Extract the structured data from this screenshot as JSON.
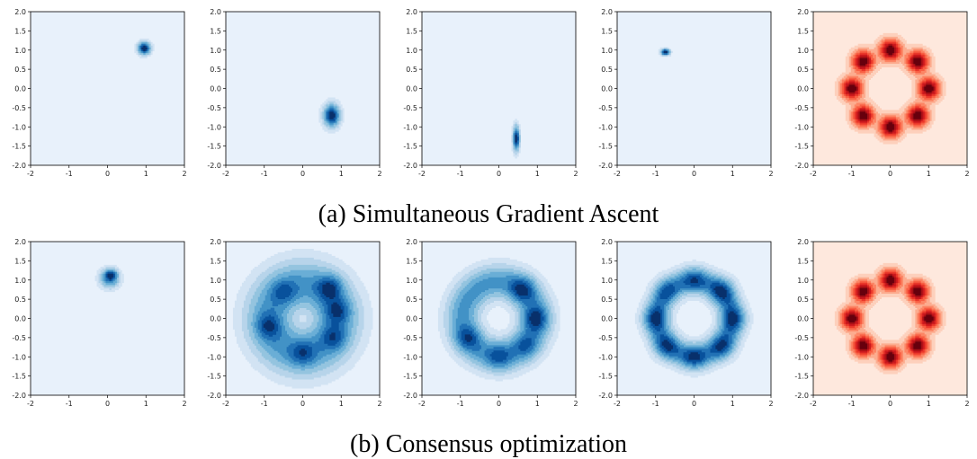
{
  "captions": {
    "row_a": "(a) Simultaneous Gradient Ascent",
    "row_b": "(b) Consensus optimization"
  },
  "colors": {
    "blue_levels": [
      "#e8f1fb",
      "#d2e3f3",
      "#b7d4ea",
      "#94c4df",
      "#6aaed6",
      "#4292c6",
      "#2171b5",
      "#08519c",
      "#08306b"
    ],
    "red_levels": [
      "#fee8dd",
      "#fdd0bc",
      "#fcac8f",
      "#fc8565",
      "#f85f43",
      "#ea372a",
      "#cb181d",
      "#a50f15",
      "#67000d"
    ]
  },
  "chart_data": [
    {
      "type": "contour",
      "row": "a",
      "panel": 1,
      "colormap": "Blues",
      "xlim": [
        -2,
        2
      ],
      "ylim": [
        -2,
        2
      ],
      "xticks": [
        "-2",
        "-1",
        "0",
        "1",
        "2"
      ],
      "yticks": [
        "2.0",
        "1.5",
        "1.0",
        "0.5",
        "0.0",
        "-0.5",
        "-1.0",
        "-1.5",
        "-2.0"
      ],
      "modes": [
        {
          "x": 0.95,
          "y": 1.05,
          "sx": 0.1,
          "sy": 0.1,
          "w": 1
        }
      ]
    },
    {
      "type": "contour",
      "row": "a",
      "panel": 2,
      "colormap": "Blues",
      "xlim": [
        -2,
        2
      ],
      "ylim": [
        -2,
        2
      ],
      "xticks": [
        "-2",
        "-1",
        "0",
        "1",
        "2"
      ],
      "yticks": [
        "2.0",
        "1.5",
        "1.0",
        "0.5",
        "0.0",
        "-0.5",
        "-1.0",
        "-1.5",
        "-2.0"
      ],
      "modes": [
        {
          "x": 0.75,
          "y": -0.7,
          "sx": 0.13,
          "sy": 0.18,
          "w": 1
        }
      ]
    },
    {
      "type": "contour",
      "row": "a",
      "panel": 3,
      "colormap": "Blues",
      "xlim": [
        -2,
        2
      ],
      "ylim": [
        -2,
        2
      ],
      "xticks": [
        "-2",
        "-1",
        "0",
        "1",
        "2"
      ],
      "yticks": [
        "2.0",
        "1.5",
        "1.0",
        "0.5",
        "0.0",
        "-0.5",
        "-1.0",
        "-1.5",
        "-2.0"
      ],
      "modes": [
        {
          "x": 0.45,
          "y": -1.3,
          "sx": 0.05,
          "sy": 0.2,
          "w": 1
        }
      ]
    },
    {
      "type": "contour",
      "row": "a",
      "panel": 4,
      "colormap": "Blues",
      "xlim": [
        -2,
        2
      ],
      "ylim": [
        -2,
        2
      ],
      "xticks": [
        "-2",
        "-1",
        "0",
        "1",
        "2"
      ],
      "yticks": [
        "2.0",
        "1.5",
        "1.0",
        "0.5",
        "0.0",
        "-0.5",
        "-1.0",
        "-1.5",
        "-2.0"
      ],
      "modes": [
        {
          "x": -0.75,
          "y": 0.95,
          "sx": 0.07,
          "sy": 0.05,
          "w": 1
        }
      ]
    },
    {
      "type": "contour",
      "row": "a",
      "panel": 5,
      "colormap": "Reds",
      "xlim": [
        -2,
        2
      ],
      "ylim": [
        -2,
        2
      ],
      "xticks": [
        "-2",
        "-1",
        "0",
        "1",
        "2"
      ],
      "yticks": [
        "2.0",
        "1.5",
        "1.0",
        "0.5",
        "0.0",
        "-0.5",
        "-1.0",
        "-1.5",
        "-2.0"
      ],
      "modes": [
        {
          "x": 0.0,
          "y": 1.0,
          "sx": 0.18,
          "sy": 0.18,
          "w": 1
        },
        {
          "x": 0.707,
          "y": 0.707,
          "sx": 0.18,
          "sy": 0.18,
          "w": 1
        },
        {
          "x": 1.0,
          "y": 0.0,
          "sx": 0.18,
          "sy": 0.18,
          "w": 1
        },
        {
          "x": 0.707,
          "y": -0.707,
          "sx": 0.18,
          "sy": 0.18,
          "w": 1
        },
        {
          "x": 0.0,
          "y": -1.0,
          "sx": 0.18,
          "sy": 0.18,
          "w": 1
        },
        {
          "x": -0.707,
          "y": -0.707,
          "sx": 0.18,
          "sy": 0.18,
          "w": 1
        },
        {
          "x": -1.0,
          "y": 0.0,
          "sx": 0.18,
          "sy": 0.18,
          "w": 1
        },
        {
          "x": -0.707,
          "y": 0.707,
          "sx": 0.18,
          "sy": 0.18,
          "w": 1
        }
      ]
    },
    {
      "type": "contour",
      "row": "b",
      "panel": 1,
      "colormap": "Blues",
      "xlim": [
        -2,
        2
      ],
      "ylim": [
        -2,
        2
      ],
      "xticks": [
        "-2",
        "-1",
        "0",
        "1",
        "2"
      ],
      "yticks": [
        "2.0",
        "1.5",
        "1.0",
        "0.5",
        "0.0",
        "-0.5",
        "-1.0",
        "-1.5",
        "-2.0"
      ],
      "modes": [
        {
          "x": 0.05,
          "y": 1.05,
          "sx": 0.15,
          "sy": 0.15,
          "w": 1
        },
        {
          "x": 0.1,
          "y": 1.15,
          "sx": 0.1,
          "sy": 0.08,
          "w": 0.6
        }
      ]
    },
    {
      "type": "contour",
      "row": "b",
      "panel": 2,
      "colormap": "Blues",
      "xlim": [
        -2,
        2
      ],
      "ylim": [
        -2,
        2
      ],
      "xticks": [
        "-2",
        "-1",
        "0",
        "1",
        "2"
      ],
      "yticks": [
        "2.0",
        "1.5",
        "1.0",
        "0.5",
        "0.0",
        "-0.5",
        "-1.0",
        "-1.5",
        "-2.0"
      ],
      "ring": {
        "r": 0.85,
        "width": 0.42,
        "peaks": [
          {
            "x": 0.7,
            "y": 0.8,
            "w": 1.0
          },
          {
            "x": 0.9,
            "y": 0.2,
            "w": 0.8
          },
          {
            "x": 0.8,
            "y": -0.5,
            "w": 0.7
          },
          {
            "x": -0.9,
            "y": -0.2,
            "w": 0.8
          },
          {
            "x": 0.0,
            "y": -0.9,
            "w": 0.7
          },
          {
            "x": -0.5,
            "y": 0.7,
            "w": 0.6
          }
        ]
      }
    },
    {
      "type": "contour",
      "row": "b",
      "panel": 3,
      "colormap": "Blues",
      "xlim": [
        -2,
        2
      ],
      "ylim": [
        -2,
        2
      ],
      "xticks": [
        "-2",
        "-1",
        "0",
        "1",
        "2"
      ],
      "yticks": [
        "2.0",
        "1.5",
        "1.0",
        "0.5",
        "0.0",
        "-0.5",
        "-1.0",
        "-1.5",
        "-2.0"
      ],
      "ring": {
        "r": 0.95,
        "width": 0.28,
        "peaks": [
          {
            "x": 0.6,
            "y": 0.75,
            "w": 1.0
          },
          {
            "x": 0.95,
            "y": 0.0,
            "w": 1.0
          },
          {
            "x": -0.8,
            "y": -0.5,
            "w": 0.8
          },
          {
            "x": 0.0,
            "y": -1.0,
            "w": 0.7
          },
          {
            "x": 0.7,
            "y": -0.7,
            "w": 0.6
          }
        ]
      }
    },
    {
      "type": "contour",
      "row": "b",
      "panel": 4,
      "colormap": "Blues",
      "xlim": [
        -2,
        2
      ],
      "ylim": [
        -2,
        2
      ],
      "xticks": [
        "-2",
        "-1",
        "0",
        "1",
        "2"
      ],
      "yticks": [
        "2.0",
        "1.5",
        "1.0",
        "0.5",
        "0.0",
        "-0.5",
        "-1.0",
        "-1.5",
        "-2.0"
      ],
      "ring": {
        "r": 0.98,
        "width": 0.2,
        "peaks": [
          {
            "x": 0.0,
            "y": 1.0,
            "w": 0.8
          },
          {
            "x": 0.707,
            "y": 0.707,
            "w": 1.0
          },
          {
            "x": 1.0,
            "y": 0.0,
            "w": 1.0
          },
          {
            "x": 0.707,
            "y": -0.707,
            "w": 0.9
          },
          {
            "x": 0.0,
            "y": -1.0,
            "w": 0.9
          },
          {
            "x": -0.707,
            "y": -0.707,
            "w": 0.9
          },
          {
            "x": -1.0,
            "y": 0.0,
            "w": 1.0
          },
          {
            "x": -0.707,
            "y": 0.707,
            "w": 0.7
          }
        ]
      }
    },
    {
      "type": "contour",
      "row": "b",
      "panel": 5,
      "colormap": "Reds",
      "xlim": [
        -2,
        2
      ],
      "ylim": [
        -2,
        2
      ],
      "xticks": [
        "-2",
        "-1",
        "0",
        "1",
        "2"
      ],
      "yticks": [
        "2.0",
        "1.5",
        "1.0",
        "0.5",
        "0.0",
        "-0.5",
        "-1.0",
        "-1.5",
        "-2.0"
      ],
      "modes": [
        {
          "x": 0.0,
          "y": 1.0,
          "sx": 0.18,
          "sy": 0.18,
          "w": 1
        },
        {
          "x": 0.707,
          "y": 0.707,
          "sx": 0.18,
          "sy": 0.18,
          "w": 1
        },
        {
          "x": 1.0,
          "y": 0.0,
          "sx": 0.18,
          "sy": 0.18,
          "w": 1
        },
        {
          "x": 0.707,
          "y": -0.707,
          "sx": 0.18,
          "sy": 0.18,
          "w": 1
        },
        {
          "x": 0.0,
          "y": -1.0,
          "sx": 0.18,
          "sy": 0.18,
          "w": 1
        },
        {
          "x": -0.707,
          "y": -0.707,
          "sx": 0.18,
          "sy": 0.18,
          "w": 1
        },
        {
          "x": -1.0,
          "y": 0.0,
          "sx": 0.18,
          "sy": 0.18,
          "w": 1
        },
        {
          "x": -0.707,
          "y": 0.707,
          "sx": 0.18,
          "sy": 0.18,
          "w": 1
        }
      ]
    }
  ]
}
